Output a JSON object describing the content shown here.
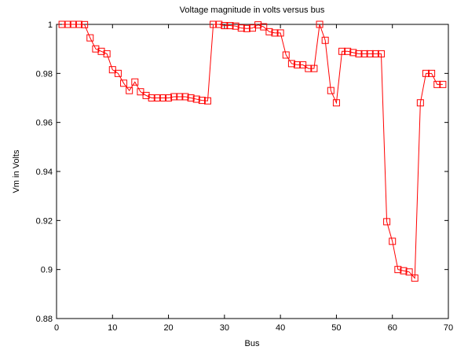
{
  "chart_data": {
    "type": "line",
    "title": "Voltage magnitude in  volts versus bus",
    "xlabel": "Bus",
    "ylabel": "Vm in Volts",
    "x": [
      1,
      2,
      3,
      4,
      5,
      6,
      7,
      8,
      9,
      10,
      11,
      12,
      13,
      14,
      15,
      16,
      17,
      18,
      19,
      20,
      21,
      22,
      23,
      24,
      25,
      26,
      27,
      28,
      29,
      30,
      31,
      32,
      33,
      34,
      35,
      36,
      37,
      38,
      39,
      40,
      41,
      42,
      43,
      44,
      45,
      46,
      47,
      48,
      49,
      50,
      51,
      52,
      53,
      54,
      55,
      56,
      57,
      58,
      59,
      60,
      61,
      62,
      63,
      64,
      65,
      66,
      67,
      68,
      69
    ],
    "series": [
      {
        "name": "Vm",
        "color": "#ff0000",
        "values": [
          1.0,
          1.0,
          1.0,
          1.0,
          0.9999,
          0.9945,
          0.99,
          0.989,
          0.988,
          0.9815,
          0.98,
          0.976,
          0.973,
          0.9765,
          0.9725,
          0.971,
          0.97,
          0.97,
          0.97,
          0.97,
          0.9705,
          0.9705,
          0.9705,
          0.97,
          0.9695,
          0.969,
          0.9688,
          1.0,
          1.0,
          0.9995,
          0.9995,
          0.9993,
          0.9985,
          0.9983,
          0.9985,
          0.9998,
          0.999,
          0.997,
          0.9965,
          0.9965,
          0.9875,
          0.984,
          0.9835,
          0.9835,
          0.982,
          0.982,
          1.0,
          0.9935,
          0.973,
          0.968,
          0.989,
          0.989,
          0.9885,
          0.988,
          0.988,
          0.988,
          0.988,
          0.988,
          0.9195,
          0.9115,
          0.9,
          0.8995,
          0.899,
          0.8965,
          0.968,
          0.98,
          0.98,
          0.9755,
          0.9755
        ]
      }
    ],
    "xlim": [
      0,
      70
    ],
    "xticks": [
      0,
      10,
      20,
      30,
      40,
      50,
      60,
      70
    ],
    "ylim": [
      0.88,
      1
    ],
    "yticks": [
      0.88,
      0.9,
      0.92,
      0.94,
      0.96,
      0.98,
      1
    ],
    "grid": false,
    "marker": "square"
  }
}
